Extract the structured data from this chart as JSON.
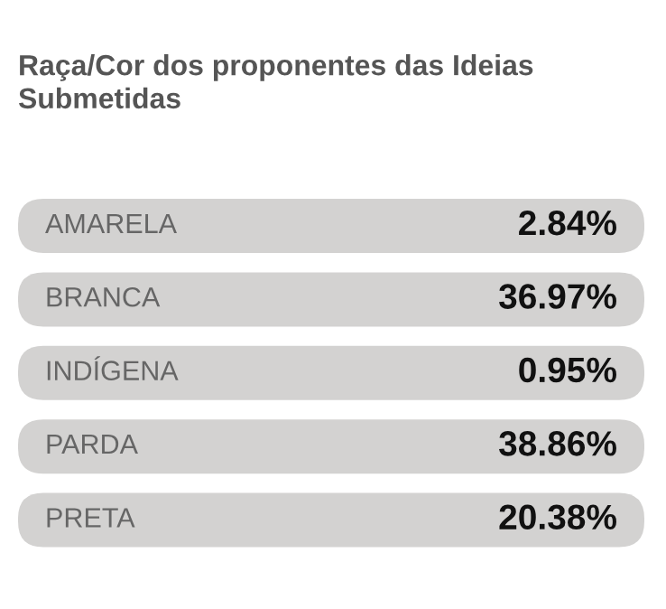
{
  "chart_data": {
    "type": "other",
    "title": "Raça/Cor dos proponentes das Ideias Submetidas",
    "categories": [
      "AMARELA",
      "BRANCA",
      "INDÍGENA",
      "PARDA",
      "PRETA"
    ],
    "values": [
      2.84,
      36.97,
      0.95,
      38.86,
      20.38
    ],
    "value_labels": [
      "2.84%",
      "36.97%",
      "0.95%",
      "38.86%",
      "20.38%"
    ],
    "color": "#d3d2d1"
  }
}
